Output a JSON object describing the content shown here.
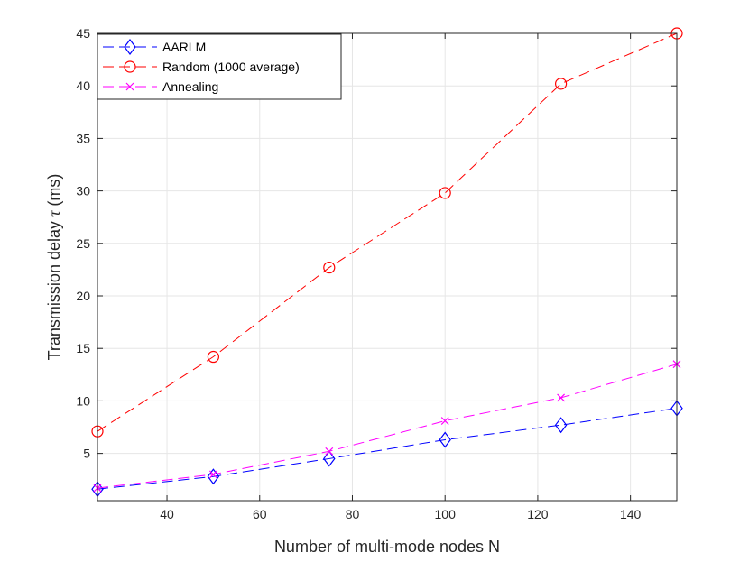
{
  "chart_data": {
    "type": "line",
    "title": "",
    "xlabel": "Number of multi-mode nodes N",
    "ylabel_main": "Transmission delay ",
    "ylabel_symbol": "τ",
    "ylabel_unit": " (ms)",
    "x": [
      25,
      50,
      75,
      100,
      125,
      150
    ],
    "xlim": [
      25,
      150
    ],
    "ylim": [
      0.5,
      45
    ],
    "xticks": [
      40,
      60,
      80,
      100,
      120,
      140
    ],
    "yticks": [
      5,
      10,
      15,
      20,
      25,
      30,
      35,
      40,
      45
    ],
    "grid": true,
    "legend_position": "top-left",
    "series": [
      {
        "name": "AARLM",
        "color": "#0000ff",
        "marker": "diamond",
        "values": [
          1.6,
          2.8,
          4.5,
          6.3,
          7.7,
          9.3
        ]
      },
      {
        "name": "Random (1000 average)",
        "color": "#ff0000",
        "marker": "circle",
        "values": [
          7.1,
          14.2,
          22.7,
          29.8,
          40.2,
          45.0
        ]
      },
      {
        "name": "Annealing",
        "color": "#ff00ff",
        "marker": "x",
        "values": [
          1.7,
          3.0,
          5.2,
          8.1,
          10.3,
          13.5
        ]
      }
    ]
  }
}
